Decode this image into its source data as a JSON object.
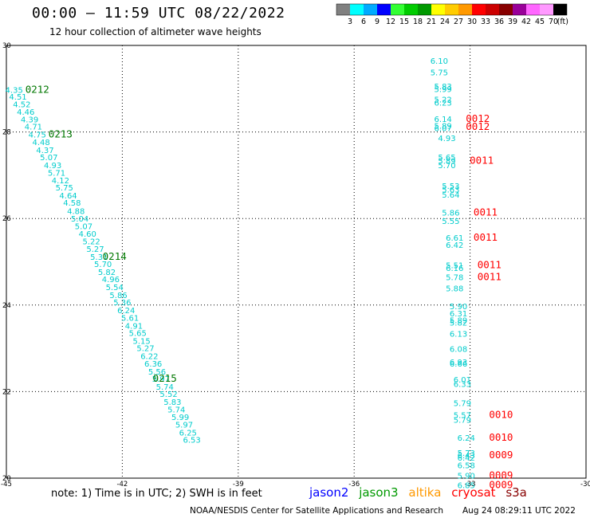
{
  "title": "00:00 – 11:59 UTC 08/22/2022",
  "subtitle": "12 hour collection of altimeter wave heights",
  "note": "note: 1) Time is in UTC; 2) SWH is in feet",
  "footer_left": "NOAA/NESDIS Center for Satellite Applications and Research",
  "footer_right": "Aug 24 08:29:11 UTC 2022",
  "legend": [
    {
      "label": "jason2",
      "color": "#0000ff"
    },
    {
      "label": "jason3",
      "color": "#009900"
    },
    {
      "label": "altika",
      "color": "#ff9900"
    },
    {
      "label": "cryosat",
      "color": "#ff0000"
    },
    {
      "label": "s3a",
      "color": "#880000"
    }
  ],
  "colorbar": {
    "unit": "(ft)",
    "ticks": [
      "3",
      "6",
      "9",
      "12",
      "15",
      "18",
      "21",
      "24",
      "27",
      "30",
      "33",
      "36",
      "39",
      "42",
      "45",
      "70"
    ],
    "colors": [
      "#808080",
      "#00ffff",
      "#00aaff",
      "#0000ff",
      "#33ff33",
      "#00cc00",
      "#009900",
      "#ffff00",
      "#ffcc00",
      "#ff9900",
      "#ff0000",
      "#cc0000",
      "#880000",
      "#990099",
      "#ff66ff",
      "#ff99ff",
      "#000000"
    ]
  },
  "chart_data": {
    "type": "scatter",
    "xlim": [
      -45,
      -30
    ],
    "ylim": [
      20,
      30
    ],
    "x_ticks": [
      "-45",
      "-42",
      "-39",
      "-36",
      "-33",
      "-30"
    ],
    "y_ticks": [
      "20",
      "22",
      "24",
      "26",
      "28",
      "30"
    ],
    "grid": true,
    "series": [
      {
        "satellite": "jason3",
        "color": "#00cccc",
        "points": [
          {
            "x": -44.8,
            "y": 28.98,
            "label": "4.35"
          },
          {
            "x": -44.7,
            "y": 28.82,
            "label": "4.51"
          },
          {
            "x": -44.6,
            "y": 28.65,
            "label": "4.52"
          },
          {
            "x": -44.5,
            "y": 28.47,
            "label": "4.46"
          },
          {
            "x": -44.4,
            "y": 28.3,
            "label": "4.39"
          },
          {
            "x": -44.3,
            "y": 28.13,
            "label": "4.71"
          },
          {
            "x": -44.2,
            "y": 27.95,
            "label": "4.75"
          },
          {
            "x": -44.1,
            "y": 27.77,
            "label": "4.48"
          },
          {
            "x": -44.0,
            "y": 27.59,
            "label": "4.37"
          },
          {
            "x": -43.9,
            "y": 27.42,
            "label": "5.07"
          },
          {
            "x": -43.8,
            "y": 27.24,
            "label": "4.93"
          },
          {
            "x": -43.7,
            "y": 27.06,
            "label": "5.71"
          },
          {
            "x": -43.6,
            "y": 26.89,
            "label": "4.12"
          },
          {
            "x": -43.5,
            "y": 26.72,
            "label": "5.75"
          },
          {
            "x": -43.4,
            "y": 26.54,
            "label": "4.64"
          },
          {
            "x": -43.3,
            "y": 26.37,
            "label": "4.58"
          },
          {
            "x": -43.2,
            "y": 26.18,
            "label": "4.88"
          },
          {
            "x": -43.1,
            "y": 26.0,
            "label": "5.04"
          },
          {
            "x": -43.0,
            "y": 25.83,
            "label": "5.07"
          },
          {
            "x": -42.9,
            "y": 25.65,
            "label": "4.60"
          },
          {
            "x": -42.8,
            "y": 25.48,
            "label": "5.22"
          },
          {
            "x": -42.7,
            "y": 25.3,
            "label": "5.27"
          },
          {
            "x": -42.6,
            "y": 25.12,
            "label": "5.31"
          },
          {
            "x": -42.5,
            "y": 24.95,
            "label": "5.70"
          },
          {
            "x": -42.4,
            "y": 24.77,
            "label": "5.82"
          },
          {
            "x": -42.3,
            "y": 24.6,
            "label": "4.96"
          },
          {
            "x": -42.2,
            "y": 24.42,
            "label": "5.54"
          },
          {
            "x": -42.1,
            "y": 24.24,
            "label": "5.86"
          },
          {
            "x": -42.0,
            "y": 24.07,
            "label": "5.36"
          },
          {
            "x": -41.9,
            "y": 23.89,
            "label": "6.24"
          },
          {
            "x": -41.8,
            "y": 23.71,
            "label": "5.61"
          },
          {
            "x": -41.7,
            "y": 23.53,
            "label": "4.91"
          },
          {
            "x": -41.6,
            "y": 23.36,
            "label": "5.65"
          },
          {
            "x": -41.5,
            "y": 23.18,
            "label": "5.15"
          },
          {
            "x": -41.4,
            "y": 23.01,
            "label": "5.27"
          },
          {
            "x": -41.3,
            "y": 22.83,
            "label": "6.22"
          },
          {
            "x": -41.2,
            "y": 22.65,
            "label": "6.36"
          },
          {
            "x": -41.1,
            "y": 22.47,
            "label": "5.56"
          },
          {
            "x": -41.0,
            "y": 22.3,
            "label": "5.97"
          },
          {
            "x": -40.9,
            "y": 22.12,
            "label": "5.74"
          },
          {
            "x": -40.8,
            "y": 21.95,
            "label": "5.52"
          },
          {
            "x": -40.7,
            "y": 21.77,
            "label": "5.83"
          },
          {
            "x": -40.6,
            "y": 21.59,
            "label": "5.74"
          },
          {
            "x": -40.5,
            "y": 21.42,
            "label": "5.99"
          },
          {
            "x": -40.4,
            "y": 21.24,
            "label": "5.97"
          },
          {
            "x": -40.3,
            "y": 21.06,
            "label": "6.25"
          },
          {
            "x": -40.2,
            "y": 20.89,
            "label": "6.53"
          }
        ]
      },
      {
        "satellite": "cryosat",
        "color": "#00cccc",
        "points": [
          {
            "x": -33.8,
            "y": 29.65,
            "label": "6.10"
          },
          {
            "x": -33.8,
            "y": 29.38,
            "label": "5.75"
          },
          {
            "x": -33.7,
            "y": 29.06,
            "label": "5.83"
          },
          {
            "x": -33.7,
            "y": 29.0,
            "label": "5.99"
          },
          {
            "x": -33.7,
            "y": 28.76,
            "label": "5.22"
          },
          {
            "x": -33.7,
            "y": 28.68,
            "label": "6.23"
          },
          {
            "x": -33.7,
            "y": 28.31,
            "label": "6.14"
          },
          {
            "x": -33.7,
            "y": 28.15,
            "label": "5.89"
          },
          {
            "x": -33.7,
            "y": 28.09,
            "label": "6.07"
          },
          {
            "x": -33.6,
            "y": 27.86,
            "label": "4.93"
          },
          {
            "x": -33.6,
            "y": 27.42,
            "label": "5.65"
          },
          {
            "x": -33.6,
            "y": 27.34,
            "label": "5.89"
          },
          {
            "x": -33.6,
            "y": 27.24,
            "label": "5.70"
          },
          {
            "x": -33.5,
            "y": 26.76,
            "label": "5.53"
          },
          {
            "x": -33.5,
            "y": 26.68,
            "label": "5.63"
          },
          {
            "x": -33.5,
            "y": 26.56,
            "label": "5.64"
          },
          {
            "x": -33.5,
            "y": 26.14,
            "label": "5.86"
          },
          {
            "x": -33.5,
            "y": 25.95,
            "label": "5.55"
          },
          {
            "x": -33.4,
            "y": 25.56,
            "label": "6.61"
          },
          {
            "x": -33.4,
            "y": 25.4,
            "label": "6.42"
          },
          {
            "x": -33.4,
            "y": 24.93,
            "label": "5.51"
          },
          {
            "x": -33.4,
            "y": 24.86,
            "label": "6.16"
          },
          {
            "x": -33.4,
            "y": 24.65,
            "label": "5.78"
          },
          {
            "x": -33.4,
            "y": 24.39,
            "label": "5.88"
          },
          {
            "x": -33.3,
            "y": 23.98,
            "label": "5.90"
          },
          {
            "x": -33.3,
            "y": 23.81,
            "label": "6.31"
          },
          {
            "x": -33.3,
            "y": 23.66,
            "label": "5.89"
          },
          {
            "x": -33.3,
            "y": 23.6,
            "label": "5.82"
          },
          {
            "x": -33.3,
            "y": 23.34,
            "label": "6.13"
          },
          {
            "x": -33.3,
            "y": 22.99,
            "label": "6.08"
          },
          {
            "x": -33.3,
            "y": 22.69,
            "label": "6.93"
          },
          {
            "x": -33.3,
            "y": 22.65,
            "label": "6.66"
          },
          {
            "x": -33.2,
            "y": 22.28,
            "label": "6.01"
          },
          {
            "x": -33.2,
            "y": 22.18,
            "label": "6.33"
          },
          {
            "x": -33.2,
            "y": 21.74,
            "label": "5.79"
          },
          {
            "x": -33.2,
            "y": 21.46,
            "label": "5.57"
          },
          {
            "x": -33.2,
            "y": 21.35,
            "label": "5.79"
          },
          {
            "x": -33.1,
            "y": 20.94,
            "label": "6.24"
          },
          {
            "x": -33.1,
            "y": 20.59,
            "label": "5.73"
          },
          {
            "x": -33.1,
            "y": 20.53,
            "label": "6.43"
          },
          {
            "x": -33.1,
            "y": 20.48,
            "label": "6.42"
          },
          {
            "x": -33.1,
            "y": 20.3,
            "label": "6.58"
          },
          {
            "x": -33.1,
            "y": 20.06,
            "label": "5.90"
          },
          {
            "x": -33.1,
            "y": 19.84,
            "label": "6.85"
          }
        ]
      }
    ],
    "pass_labels": [
      {
        "x": -44.2,
        "y": 28.98,
        "label": "0212",
        "color": "#007700"
      },
      {
        "x": -43.6,
        "y": 27.95,
        "label": "0213",
        "color": "#007700"
      },
      {
        "x": -42.2,
        "y": 25.12,
        "label": "0214",
        "color": "#007700"
      },
      {
        "x": -40.9,
        "y": 22.3,
        "label": "0215",
        "color": "#007700"
      },
      {
        "x": -32.8,
        "y": 28.31,
        "label": "0012",
        "color": "#ff0000"
      },
      {
        "x": -32.8,
        "y": 28.12,
        "label": "0012",
        "color": "#ff0000"
      },
      {
        "x": -32.7,
        "y": 27.34,
        "label": "0011",
        "color": "#ff0000"
      },
      {
        "x": -32.6,
        "y": 26.14,
        "label": "0011",
        "color": "#ff0000"
      },
      {
        "x": -32.6,
        "y": 25.56,
        "label": "0011",
        "color": "#ff0000"
      },
      {
        "x": -32.5,
        "y": 24.93,
        "label": "0011",
        "color": "#ff0000"
      },
      {
        "x": -32.5,
        "y": 24.65,
        "label": "0011",
        "color": "#ff0000"
      },
      {
        "x": -32.2,
        "y": 21.46,
        "label": "0010",
        "color": "#ff0000"
      },
      {
        "x": -32.2,
        "y": 20.94,
        "label": "0010",
        "color": "#ff0000"
      },
      {
        "x": -32.2,
        "y": 20.53,
        "label": "0009",
        "color": "#ff0000"
      },
      {
        "x": -32.2,
        "y": 20.06,
        "label": "0009",
        "color": "#ff0000"
      },
      {
        "x": -32.2,
        "y": 19.84,
        "label": "0009",
        "color": "#ff0000"
      }
    ]
  }
}
